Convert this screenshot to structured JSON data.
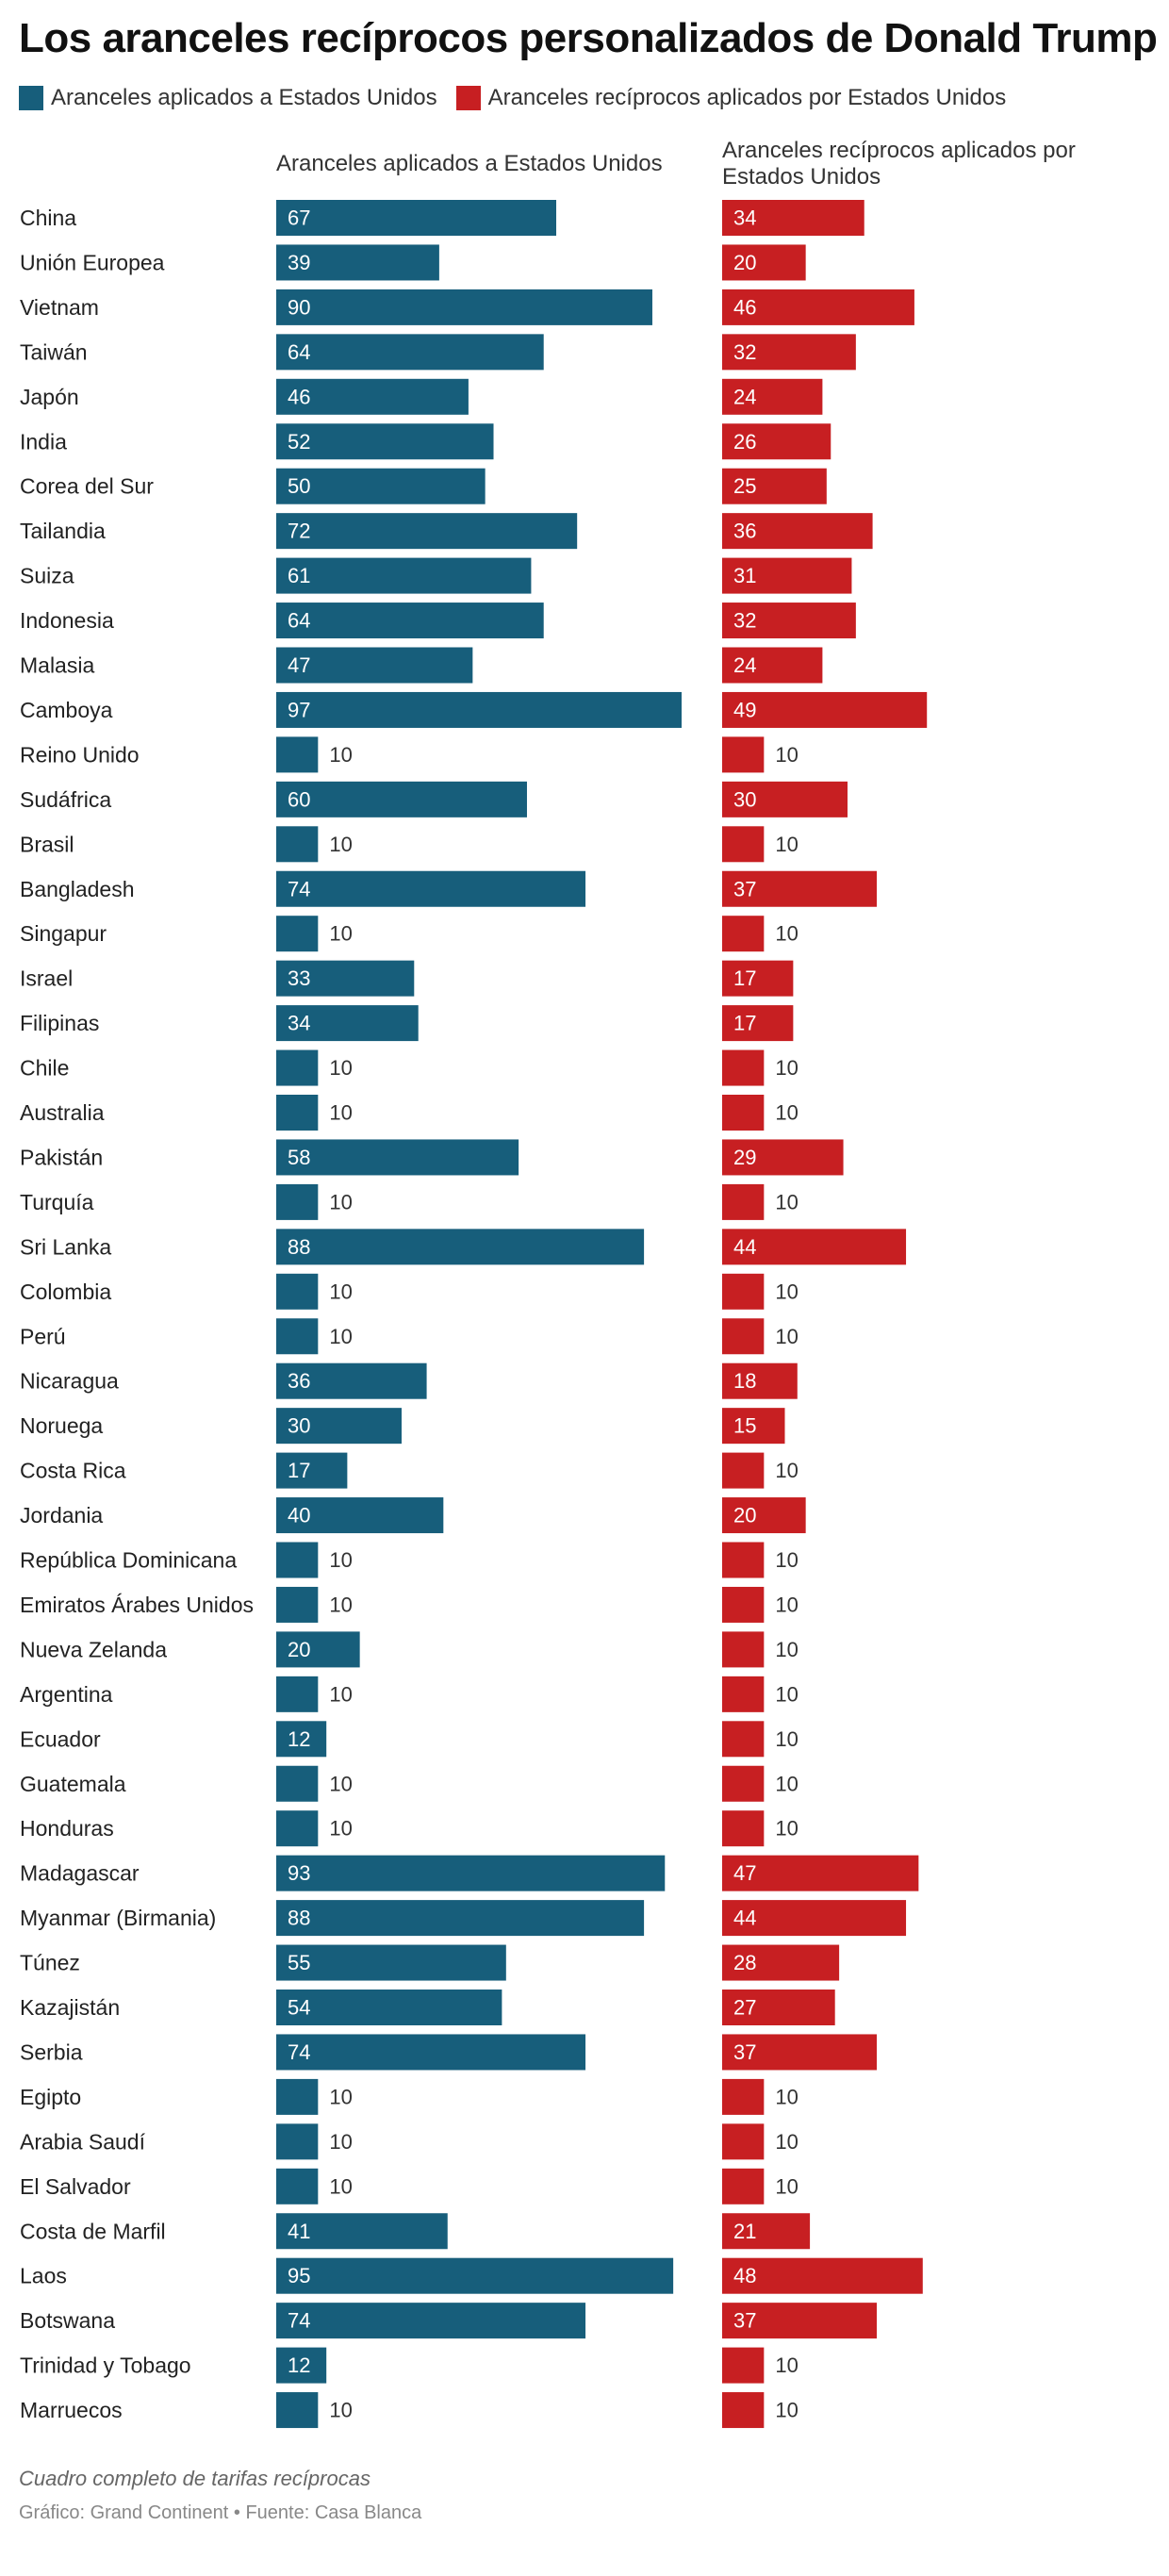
{
  "chart_data": {
    "type": "bar",
    "title": "Los aranceles recíprocos personalizados de Donald Trump",
    "note": "Cuadro completo de tarifas recíprocas",
    "source": "Gráfico: Grand Continent • Fuente: Casa Blanca",
    "categories": [
      "China",
      "Unión Europea",
      "Vietnam",
      "Taiwán",
      "Japón",
      "India",
      "Corea del Sur",
      "Tailandia",
      "Suiza",
      "Indonesia",
      "Malasia",
      "Camboya",
      "Reino Unido",
      "Sudáfrica",
      "Brasil",
      "Bangladesh",
      "Singapur",
      "Israel",
      "Filipinas",
      "Chile",
      "Australia",
      "Pakistán",
      "Turquía",
      "Sri Lanka",
      "Colombia",
      "Perú",
      "Nicaragua",
      "Noruega",
      "Costa Rica",
      "Jordania",
      "República Dominicana",
      "Emiratos Árabes Unidos",
      "Nueva Zelanda",
      "Argentina",
      "Ecuador",
      "Guatemala",
      "Honduras",
      "Madagascar",
      "Myanmar (Birmania)",
      "Túnez",
      "Kazajistán",
      "Serbia",
      "Egipto",
      "Arabia Saudí",
      "El Salvador",
      "Costa de Marfil",
      "Laos",
      "Botswana",
      "Trinidad y Tobago",
      "Marruecos"
    ],
    "series": [
      {
        "name": "Aranceles aplicados a Estados Unidos",
        "color": "#175e7b",
        "values": [
          67,
          39,
          90,
          64,
          46,
          52,
          50,
          72,
          61,
          64,
          47,
          97,
          10,
          60,
          10,
          74,
          10,
          33,
          34,
          10,
          10,
          58,
          10,
          88,
          10,
          10,
          36,
          30,
          17,
          40,
          10,
          10,
          20,
          10,
          12,
          10,
          10,
          93,
          88,
          55,
          54,
          74,
          10,
          10,
          10,
          41,
          95,
          74,
          12,
          10
        ]
      },
      {
        "name": "Aranceles recíprocos aplicados por Estados Unidos",
        "color": "#c71f22",
        "values": [
          34,
          20,
          46,
          32,
          24,
          26,
          25,
          36,
          31,
          32,
          24,
          49,
          10,
          30,
          10,
          37,
          10,
          17,
          17,
          10,
          10,
          29,
          10,
          44,
          10,
          10,
          18,
          15,
          10,
          20,
          10,
          10,
          10,
          10,
          10,
          10,
          10,
          47,
          44,
          28,
          27,
          37,
          10,
          10,
          10,
          21,
          48,
          37,
          10,
          10
        ]
      }
    ]
  }
}
